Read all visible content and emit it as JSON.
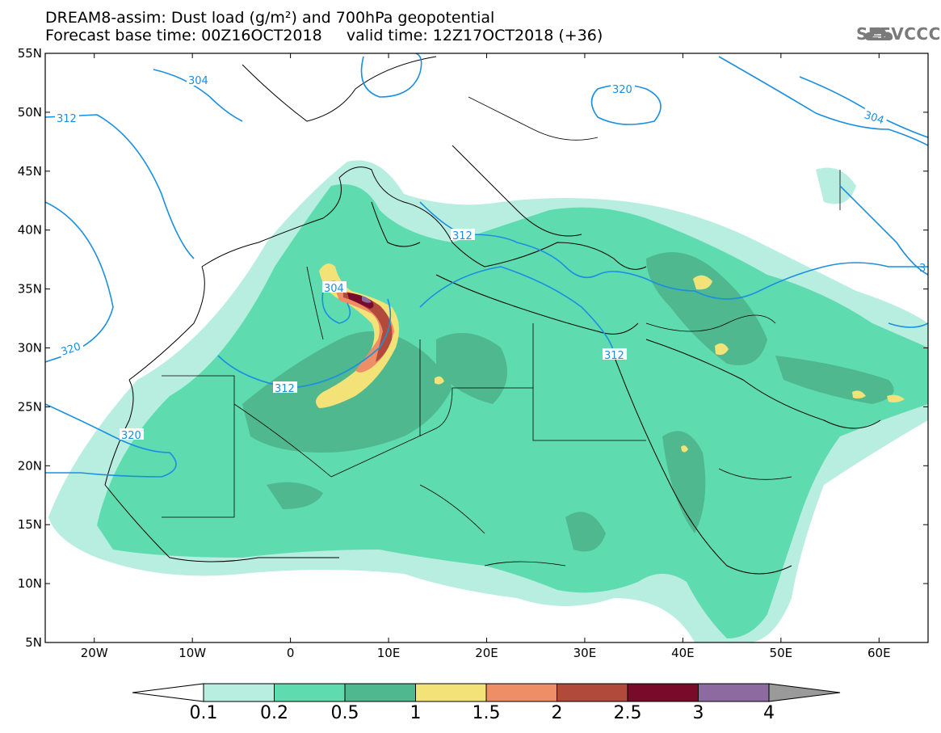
{
  "title": {
    "line1": "DREAM8-assim: Dust load (g/m²) and 700hPa geopotential",
    "line2": "Forecast base time: 00Z16OCT2018     valid time: 12Z17OCT2018 (+36)"
  },
  "logo": {
    "text": "SEEVCCC",
    "icon": "cloud-icon"
  },
  "map": {
    "lat_labels": [
      "55N",
      "50N",
      "45N",
      "40N",
      "35N",
      "30N",
      "25N",
      "20N",
      "15N",
      "10N",
      "5N"
    ],
    "lon_labels": [
      "20W",
      "10W",
      "0",
      "10E",
      "20E",
      "30E",
      "40E",
      "50E",
      "60E"
    ],
    "contours": [
      {
        "label": "304"
      },
      {
        "label": "304"
      },
      {
        "label": "304"
      },
      {
        "label": "312"
      },
      {
        "label": "312"
      },
      {
        "label": "312"
      },
      {
        "label": "312"
      },
      {
        "label": "320"
      },
      {
        "label": "320"
      },
      {
        "label": "320"
      },
      {
        "label": "3"
      }
    ]
  },
  "colorbar": {
    "labels": [
      "0.1",
      "0.2",
      "0.5",
      "1",
      "1.5",
      "2",
      "2.5",
      "3",
      "4"
    ],
    "colors": [
      "#b8eee0",
      "#5fdbb0",
      "#4fb88f",
      "#f3e277",
      "#ee8e66",
      "#b24a3c",
      "#7a0a2a",
      "#8d6a9f",
      "#9a9a9a"
    ]
  }
}
